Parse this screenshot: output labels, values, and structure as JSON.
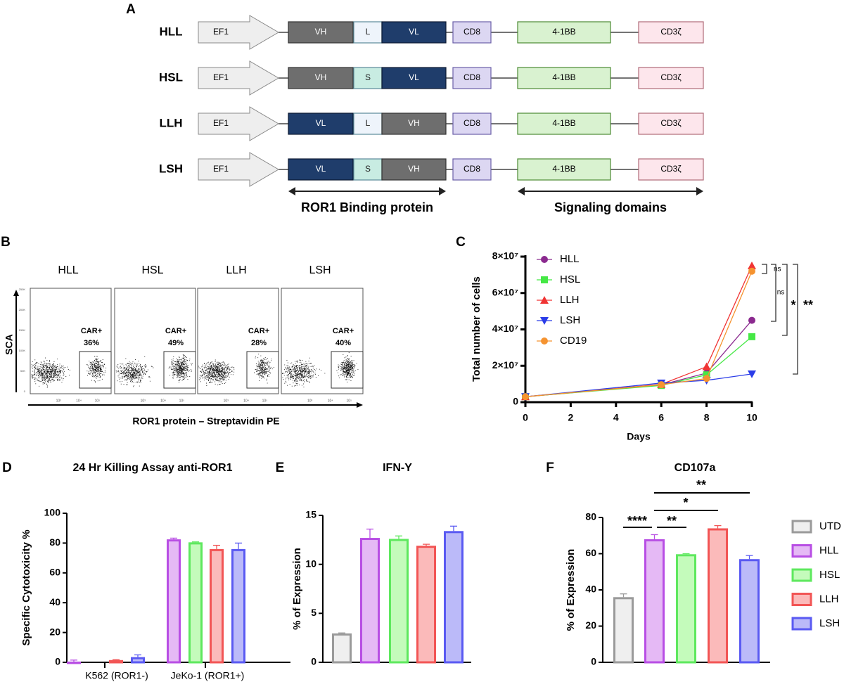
{
  "panel_letters": {
    "a": "A",
    "b": "B",
    "c": "C",
    "d": "D",
    "e": "E",
    "f": "F"
  },
  "panel_a": {
    "constructs": [
      {
        "name": "HLL",
        "promoter": "EF1",
        "blocks": [
          "VH",
          "L",
          "VL"
        ],
        "cd8": "CD8",
        "costim": "4-1BB",
        "cd3": "CD3ζ"
      },
      {
        "name": "HSL",
        "promoter": "EF1",
        "blocks": [
          "VH",
          "S",
          "VL"
        ],
        "cd8": "CD8",
        "costim": "4-1BB",
        "cd3": "CD3ζ"
      },
      {
        "name": "LLH",
        "promoter": "EF1",
        "blocks": [
          "VL",
          "L",
          "VH"
        ],
        "cd8": "CD8",
        "costim": "4-1BB",
        "cd3": "CD3ζ"
      },
      {
        "name": "LSH",
        "promoter": "EF1",
        "blocks": [
          "VL",
          "S",
          "VH"
        ],
        "cd8": "CD8",
        "costim": "4-1BB",
        "cd3": "CD3ζ"
      }
    ],
    "binding_label": "ROR1 Binding protein",
    "signaling_label": "Signaling domains",
    "colors": {
      "VH": "#6e6e6e",
      "VL": "#1f3d6b",
      "L": "#eef4fb",
      "S": "#c8ece2",
      "CD8": "#dcd7f2",
      "41BB": "#d9f2d0",
      "CD3": "#fde6ec",
      "EF1": "#eeeeee"
    }
  },
  "panel_b": {
    "ylabel": "SCA",
    "xlabel": "ROR1 protein – Streptavidin PE",
    "gate_label": "CAR+",
    "x_ticks": [
      "10³",
      "10⁴",
      "10⁵"
    ],
    "y_ticks": [
      "0",
      "50K",
      "100K",
      "150K",
      "200K",
      "250K"
    ],
    "plots": [
      {
        "title": "HLL",
        "percent": "36%"
      },
      {
        "title": "HSL",
        "percent": "49%"
      },
      {
        "title": "LLH",
        "percent": "28%"
      },
      {
        "title": "LSH",
        "percent": "40%"
      }
    ]
  },
  "chart_data": [
    {
      "id": "C",
      "type": "line",
      "xlabel": "Days",
      "ylabel": "Total number of cells",
      "x": [
        0,
        6,
        8,
        10
      ],
      "xlim": [
        0,
        10
      ],
      "ylim": [
        0,
        80000000
      ],
      "x_ticks": [
        "0",
        "2",
        "4",
        "6",
        "8",
        "10"
      ],
      "y_ticks": [
        "0",
        "2×10⁷",
        "4×10⁷",
        "6×10⁷",
        "8×10⁷"
      ],
      "legend_position": "top-left",
      "series": [
        {
          "name": "HLL",
          "color": "#8b2a8f",
          "marker": "circle",
          "values": [
            3000000,
            9500000,
            16000000,
            45000000
          ]
        },
        {
          "name": "HSL",
          "color": "#45e845",
          "marker": "square",
          "values": [
            3000000,
            9200000,
            15000000,
            36000000
          ]
        },
        {
          "name": "LLH",
          "color": "#f03434",
          "marker": "triangle-up",
          "values": [
            3000000,
            9800000,
            19500000,
            75000000
          ]
        },
        {
          "name": "LSH",
          "color": "#2b3de8",
          "marker": "triangle-down",
          "values": [
            3000000,
            10500000,
            12000000,
            15500000
          ]
        },
        {
          "name": "CD19",
          "color": "#f59330",
          "marker": "circle",
          "values": [
            3000000,
            9600000,
            13000000,
            72000000
          ]
        }
      ],
      "significance": [
        {
          "label": "ns",
          "pair": [
            "LLH",
            "CD19"
          ]
        },
        {
          "label": "ns",
          "pair": [
            "LLH",
            "HLL"
          ]
        },
        {
          "label": "*",
          "pair": [
            "LLH",
            "HSL"
          ]
        },
        {
          "label": "**",
          "pair": [
            "LLH",
            "LSH"
          ]
        }
      ]
    },
    {
      "id": "D",
      "type": "bar",
      "title": "24 Hr Killing Assay anti-ROR1",
      "ylabel": "Specific Cytotoxicity %",
      "ylim": [
        0,
        100
      ],
      "y_ticks": [
        "0",
        "20",
        "40",
        "60",
        "80",
        "100"
      ],
      "categories": [
        "K562 (ROR1-)",
        "JeKo-1 (ROR1+)"
      ],
      "series": [
        {
          "name": "HLL",
          "values": [
            0.5,
            82.5
          ],
          "errors": [
            1,
            0.8
          ]
        },
        {
          "name": "HSL",
          "values": [
            0,
            80.5
          ],
          "errors": [
            0,
            0.3
          ]
        },
        {
          "name": "LLH",
          "values": [
            1.5,
            76
          ],
          "errors": [
            0.3,
            2.5
          ]
        },
        {
          "name": "LSH",
          "values": [
            3.5,
            76
          ],
          "errors": [
            1.5,
            4
          ]
        }
      ]
    },
    {
      "id": "E",
      "type": "bar",
      "title": "IFN-Y",
      "ylabel": "% of Expression",
      "ylim": [
        0,
        15
      ],
      "y_ticks": [
        "0",
        "5",
        "10",
        "15"
      ],
      "categories": [
        "UTD",
        "HLL",
        "HSL",
        "LLH",
        "LSH"
      ],
      "values": [
        2.95,
        12.7,
        12.6,
        11.9,
        13.4
      ],
      "errors": [
        0.05,
        0.9,
        0.3,
        0.15,
        0.5
      ]
    },
    {
      "id": "F",
      "type": "bar",
      "title": "CD107a",
      "ylabel": "% of Expression",
      "ylim": [
        0,
        80
      ],
      "y_ticks": [
        "0",
        "20",
        "40",
        "60",
        "80"
      ],
      "categories": [
        "UTD",
        "HLL",
        "HSL",
        "LLH",
        "LSH"
      ],
      "values": [
        36,
        68,
        59.7,
        74,
        57
      ],
      "errors": [
        1.8,
        2.5,
        0.3,
        1.5,
        2
      ],
      "legend": [
        "UTD",
        "HLL",
        "HSL",
        "LLH",
        "LSH"
      ],
      "legend_position": "right",
      "significance": [
        {
          "label": "****",
          "pair": [
            "UTD",
            "HLL"
          ]
        },
        {
          "label": "**",
          "pair": [
            "HLL",
            "HSL"
          ]
        },
        {
          "label": "*",
          "pair": [
            "HLL",
            "LLH"
          ]
        },
        {
          "label": "**",
          "pair": [
            "HLL",
            "LSH"
          ]
        }
      ]
    }
  ],
  "group_colors": {
    "UTD": {
      "stroke": "#9a9a9a",
      "fill": "#efefef"
    },
    "HLL": {
      "stroke": "#b84ee4",
      "fill": "#e5b9f5"
    },
    "HSL": {
      "stroke": "#5ee85e",
      "fill": "#c4fbbb"
    },
    "LLH": {
      "stroke": "#f25555",
      "fill": "#fbbaba"
    },
    "LSH": {
      "stroke": "#5a5af2",
      "fill": "#bbbaf9"
    }
  }
}
